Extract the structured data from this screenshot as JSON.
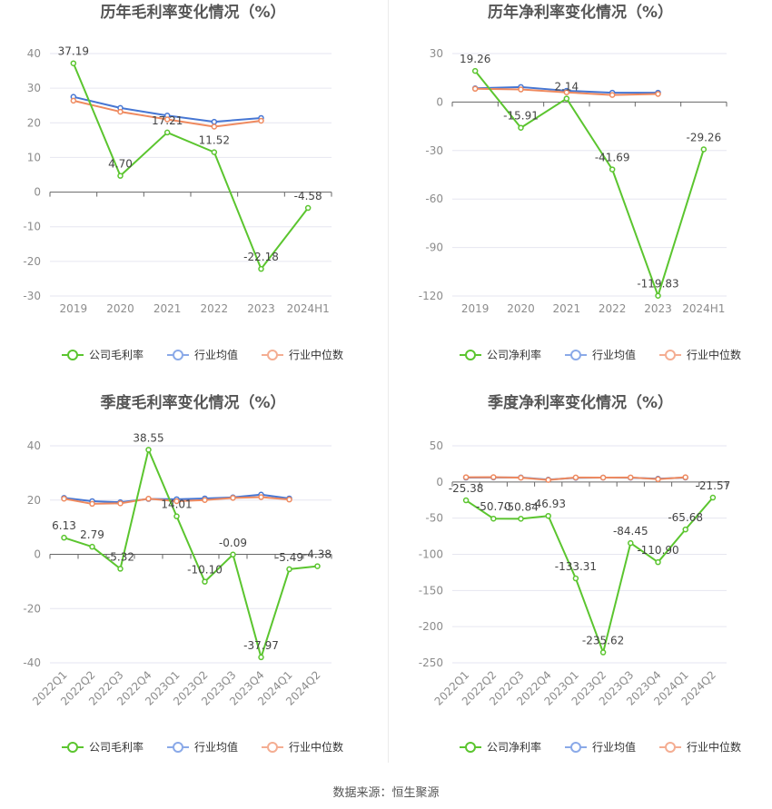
{
  "source_text": "数据来源：恒生聚源",
  "colors": {
    "company": "#5bc52f",
    "industry_avg": "#4676d3",
    "industry_median": "#ef8a5f",
    "legend_avg": "#8aa9e8",
    "legend_median": "#f4ad92",
    "grid": "#e6e6f0",
    "axis": "#666666",
    "tick": "#8c8c8c",
    "title": "#555555"
  },
  "chart_data": [
    {
      "type": "line",
      "title": "历年毛利率变化情况（%）",
      "categories": [
        "2019",
        "2020",
        "2021",
        "2022",
        "2023",
        "2024H1"
      ],
      "y_ticks": [
        "40",
        "30",
        "20",
        "10",
        "0",
        "-10",
        "-20",
        "-30"
      ],
      "ylim": [
        -30,
        40
      ],
      "series": [
        {
          "name": "公司毛利率",
          "values": [
            37.19,
            4.7,
            17.21,
            11.52,
            -22.18,
            -4.58
          ],
          "labels": [
            "37.19",
            "4.70",
            "17.21",
            "11.52",
            "-22.18",
            "-4.58"
          ]
        },
        {
          "name": "行业均值",
          "values": [
            27.5,
            24.3,
            22.1,
            20.3,
            21.4,
            null
          ]
        },
        {
          "name": "行业中位数",
          "values": [
            26.4,
            23.2,
            21.0,
            18.9,
            20.6,
            null
          ]
        }
      ]
    },
    {
      "type": "line",
      "title": "历年净利率变化情况（%）",
      "categories": [
        "2019",
        "2020",
        "2021",
        "2022",
        "2023",
        "2024H1"
      ],
      "y_ticks": [
        "30",
        "0",
        "-30",
        "-60",
        "-90",
        "-120"
      ],
      "ylim": [
        -120,
        30
      ],
      "series": [
        {
          "name": "公司净利率",
          "values": [
            19.26,
            -15.91,
            2.14,
            -41.69,
            -119.83,
            -29.26
          ],
          "labels": [
            "19.26",
            "-15.91",
            "2.14",
            "-41.69",
            "-119.83",
            "-29.26"
          ]
        },
        {
          "name": "行业均值",
          "values": [
            8.5,
            9.3,
            7.0,
            5.8,
            5.8,
            null
          ]
        },
        {
          "name": "行业中位数",
          "values": [
            8.2,
            7.8,
            6.0,
            4.4,
            5.0,
            null
          ]
        }
      ]
    },
    {
      "type": "line",
      "title": "季度毛利率变化情况（%）",
      "categories": [
        "2022Q1",
        "2022Q2",
        "2022Q3",
        "2022Q4",
        "2023Q1",
        "2023Q2",
        "2023Q3",
        "2023Q4",
        "2024Q1",
        "2024Q2"
      ],
      "y_ticks": [
        "40",
        "20",
        "0",
        "-20",
        "-40"
      ],
      "ylim": [
        -40,
        40
      ],
      "series": [
        {
          "name": "公司毛利率",
          "values": [
            6.13,
            2.79,
            -5.32,
            38.55,
            14.01,
            -10.1,
            -0.09,
            -37.97,
            -5.49,
            -4.38
          ],
          "labels": [
            "6.13",
            "2.79",
            "-5.32",
            "38.55",
            "14.01",
            "-10.10",
            "-0.09",
            "-37.97",
            "-5.49",
            "-4.38"
          ]
        },
        {
          "name": "行业均值",
          "values": [
            20.8,
            19.6,
            19.2,
            20.4,
            20.3,
            20.6,
            21.0,
            22.0,
            20.6,
            null
          ]
        },
        {
          "name": "行业中位数",
          "values": [
            20.5,
            18.6,
            18.8,
            20.5,
            19.6,
            20.0,
            20.8,
            21.1,
            20.2,
            null
          ]
        }
      ]
    },
    {
      "type": "line",
      "title": "季度净利率变化情况（%）",
      "categories": [
        "2022Q1",
        "2022Q2",
        "2022Q3",
        "2022Q4",
        "2023Q1",
        "2023Q2",
        "2023Q3",
        "2023Q4",
        "2024Q1",
        "2024Q2"
      ],
      "y_ticks": [
        "50",
        "0",
        "-50",
        "-100",
        "-150",
        "-200",
        "-250"
      ],
      "ylim": [
        -250,
        50
      ],
      "series": [
        {
          "name": "公司净利率",
          "values": [
            -25.38,
            -50.7,
            -50.84,
            -46.93,
            -133.31,
            -235.62,
            -84.45,
            -110.9,
            -65.68,
            -21.57
          ],
          "labels": [
            "-25.38",
            "-50.70",
            "-50.84",
            "-46.93",
            "-133.31",
            "-235.62",
            "-84.45",
            "-110.90",
            "-65.68",
            "-21.57"
          ]
        },
        {
          "name": "行业均值",
          "values": [
            6.0,
            6.3,
            6.2,
            3.2,
            5.8,
            6.0,
            5.9,
            4.5,
            6.1,
            null
          ]
        },
        {
          "name": "行业中位数",
          "values": [
            6.6,
            6.7,
            5.9,
            2.8,
            6.2,
            6.1,
            6.3,
            3.8,
            6.5,
            null
          ]
        }
      ]
    }
  ]
}
